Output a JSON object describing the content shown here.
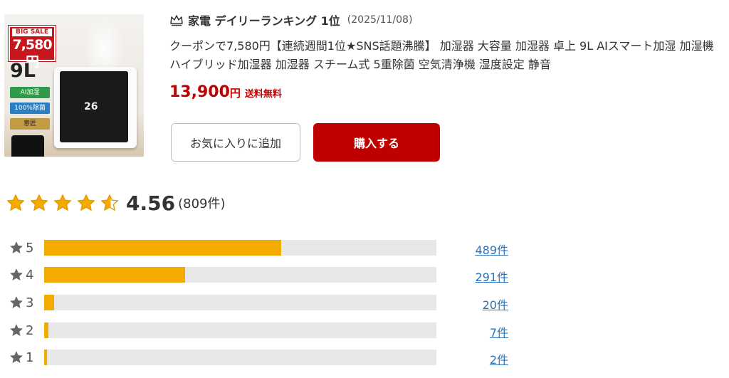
{
  "product": {
    "image_texts": {
      "sale_badge_top": "BIG SALE",
      "sale_badge_price": "7,580円",
      "capacity": "9L",
      "tag_ai": "AI加湿",
      "tag_removal": "100%除菌",
      "tag_design": "意匠"
    },
    "ranking_label": "家電 デイリーランキング 1位",
    "ranking_date": "(2025/11/08)",
    "title": "クーポンで7,580円【連続週間1位★SNS話題沸騰】 加湿器 大容量 加湿器 卓上 9L AIスマート加湿 加湿機 ハイブリッド加湿器 加湿器 スチーム式 5重除菌 空気清浄機 湿度設定 静音",
    "price": "13,900",
    "price_unit": "円",
    "shipping": "送料無料",
    "fav_button": "お気に入りに追加",
    "buy_button": "購入する"
  },
  "rating": {
    "average": "4.56",
    "average_value": 4.56,
    "count": "(809件)",
    "star_color": "#f4ab00",
    "breakdown": [
      {
        "stars": "5",
        "count_label": "489件",
        "count": 489
      },
      {
        "stars": "4",
        "count_label": "291件",
        "count": 291
      },
      {
        "stars": "3",
        "count_label": "20件",
        "count": 20
      },
      {
        "stars": "2",
        "count_label": "7件",
        "count": 7
      },
      {
        "stars": "1",
        "count_label": "2件",
        "count": 2
      }
    ],
    "bar_max": 809
  },
  "colors": {
    "accent_red": "#bf0000",
    "link_blue": "#2a73b8",
    "bar_fill": "#f4ab00",
    "bar_track": "#e8e8e8"
  }
}
